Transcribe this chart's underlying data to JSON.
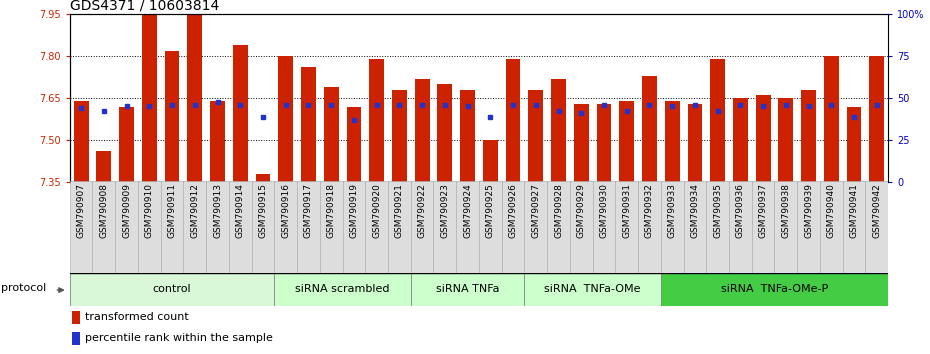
{
  "title": "GDS4371 / 10603814",
  "samples": [
    "GSM790907",
    "GSM790908",
    "GSM790909",
    "GSM790910",
    "GSM790911",
    "GSM790912",
    "GSM790913",
    "GSM790914",
    "GSM790915",
    "GSM790916",
    "GSM790917",
    "GSM790918",
    "GSM790919",
    "GSM790920",
    "GSM790921",
    "GSM790922",
    "GSM790923",
    "GSM790924",
    "GSM790925",
    "GSM790926",
    "GSM790927",
    "GSM790928",
    "GSM790929",
    "GSM790930",
    "GSM790931",
    "GSM790932",
    "GSM790933",
    "GSM790934",
    "GSM790935",
    "GSM790936",
    "GSM790937",
    "GSM790938",
    "GSM790939",
    "GSM790940",
    "GSM790941",
    "GSM790942"
  ],
  "bar_values": [
    7.64,
    7.46,
    7.62,
    7.95,
    7.82,
    7.95,
    7.64,
    7.84,
    7.38,
    7.8,
    7.76,
    7.69,
    7.62,
    7.79,
    7.68,
    7.72,
    7.7,
    7.68,
    7.5,
    7.79,
    7.68,
    7.72,
    7.63,
    7.63,
    7.64,
    7.73,
    7.64,
    7.63,
    7.79,
    7.65,
    7.66,
    7.65,
    7.68,
    7.8,
    7.62,
    7.8
  ],
  "percentile_values": [
    7.614,
    7.604,
    7.621,
    7.621,
    7.627,
    7.627,
    7.635,
    7.627,
    7.582,
    7.627,
    7.627,
    7.627,
    7.574,
    7.627,
    7.627,
    7.627,
    7.627,
    7.621,
    7.582,
    7.627,
    7.627,
    7.604,
    7.597,
    7.627,
    7.604,
    7.627,
    7.621,
    7.627,
    7.604,
    7.627,
    7.621,
    7.627,
    7.621,
    7.627,
    7.582,
    7.627
  ],
  "groups": [
    {
      "label": "control",
      "start": 0,
      "end": 9,
      "color": "#d8f8d8"
    },
    {
      "label": "siRNA scrambled",
      "start": 9,
      "end": 15,
      "color": "#d8f8d8"
    },
    {
      "label": "siRNA TNFa",
      "start": 15,
      "end": 20,
      "color": "#d8f8d8"
    },
    {
      "label": "siRNA  TNFa-OMe",
      "start": 20,
      "end": 26,
      "color": "#d8f8d8"
    },
    {
      "label": "siRNA  TNFa-OMe-P",
      "start": 26,
      "end": 36,
      "color": "#44cc44"
    }
  ],
  "ylim": [
    7.35,
    7.95
  ],
  "yticks": [
    7.35,
    7.5,
    7.65,
    7.8,
    7.95
  ],
  "right_yticks": [
    0,
    25,
    50,
    75,
    100
  ],
  "bar_color": "#cc2200",
  "dot_color": "#2233cc",
  "bg_color": "#ffffff",
  "title_fontsize": 10,
  "tick_fontsize": 7,
  "label_fontsize": 6.5,
  "legend_fontsize": 8,
  "group_fontsize": 8
}
